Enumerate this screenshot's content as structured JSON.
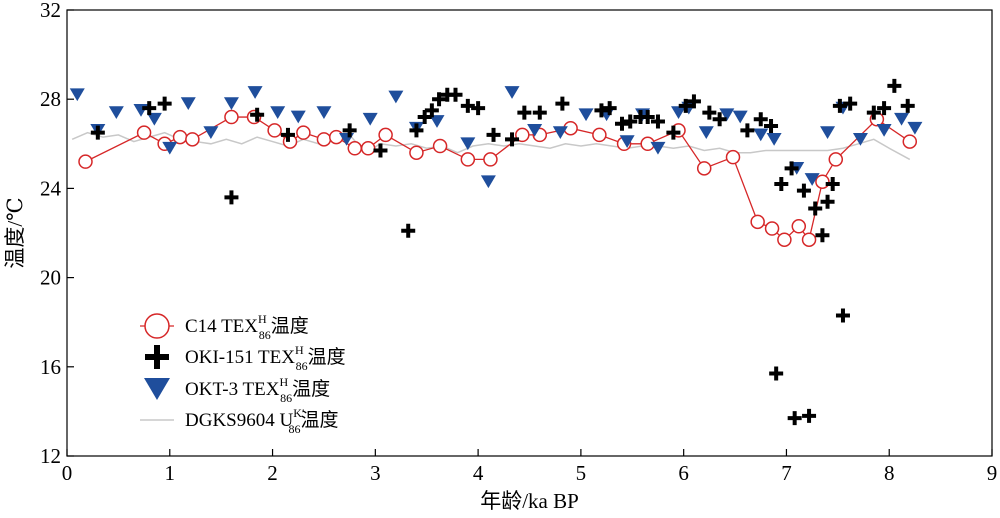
{
  "chart_data": {
    "type": "scatter",
    "xlabel": "年龄/ka BP",
    "ylabel": "温度/℃",
    "xlim": [
      0,
      9
    ],
    "ylim": [
      12,
      32
    ],
    "x_ticks": [
      "0",
      "1",
      "2",
      "3",
      "4",
      "5",
      "6",
      "7",
      "8",
      "9"
    ],
    "y_ticks": [
      "12",
      "16",
      "20",
      "24",
      "28",
      "32"
    ],
    "grid": false,
    "legend_position": "bottom-left",
    "colors": {
      "c14": "#d62728",
      "oki": "#000000",
      "okt": "#1f4e9c",
      "dgks": "#c8c8c8"
    },
    "legend": [
      {
        "key": "c14",
        "pre": "C14 TEX",
        "sup": "H",
        "sub": "86",
        "post": "温度"
      },
      {
        "key": "oki",
        "pre": "OKI-151 TEX",
        "sup": "H",
        "sub": "86",
        "post": "温度"
      },
      {
        "key": "okt",
        "pre": "OKT-3 TEX",
        "sup": "H",
        "sub": "86",
        "post": "温度"
      },
      {
        "key": "dgks",
        "pre": "DGKS9604 U",
        "sup": "K′",
        "sub": "86",
        "post": "温度"
      }
    ],
    "series": [
      {
        "name": "C14 TEX H 86 温度",
        "marker": "circle-line",
        "x": [
          0.18,
          0.75,
          0.95,
          1.1,
          1.22,
          1.6,
          1.82,
          2.02,
          2.17,
          2.3,
          2.5,
          2.62,
          2.8,
          2.93,
          3.1,
          3.4,
          3.63,
          3.9,
          4.12,
          4.43,
          4.6,
          4.9,
          5.18,
          5.42,
          5.65,
          5.95,
          6.2,
          6.48,
          6.72,
          6.86,
          6.98,
          7.12,
          7.22,
          7.35,
          7.48,
          7.88,
          8.2
        ],
        "y": [
          25.2,
          26.5,
          26.0,
          26.3,
          26.2,
          27.2,
          27.2,
          26.6,
          26.1,
          26.5,
          26.2,
          26.3,
          25.8,
          25.8,
          26.4,
          25.6,
          25.9,
          25.3,
          25.3,
          26.4,
          26.4,
          26.7,
          26.4,
          26.0,
          26.0,
          26.6,
          24.9,
          25.4,
          22.5,
          22.2,
          21.7,
          22.3,
          21.7,
          24.3,
          25.3,
          27.1,
          26.1
        ]
      },
      {
        "name": "OKI-151 TEX H 86 温度",
        "marker": "plus",
        "x": [
          0.3,
          0.8,
          0.95,
          1.6,
          1.85,
          2.15,
          2.75,
          3.05,
          3.32,
          3.4,
          3.48,
          3.55,
          3.62,
          3.7,
          3.78,
          3.9,
          4.0,
          4.15,
          4.33,
          4.45,
          4.6,
          4.82,
          5.2,
          5.28,
          5.4,
          5.48,
          5.58,
          5.65,
          5.75,
          5.9,
          6.02,
          6.1,
          6.25,
          6.35,
          6.62,
          6.75,
          6.85,
          6.9,
          6.95,
          7.05,
          7.08,
          7.17,
          7.22,
          7.28,
          7.35,
          7.4,
          7.45,
          7.52,
          7.55,
          7.62,
          7.85,
          7.95,
          8.05,
          8.18
        ],
        "y": [
          26.5,
          27.6,
          27.8,
          23.6,
          27.3,
          26.4,
          26.6,
          25.7,
          22.1,
          26.6,
          27.2,
          27.5,
          28.0,
          28.2,
          28.2,
          27.7,
          27.6,
          26.4,
          26.2,
          27.4,
          27.4,
          27.8,
          27.5,
          27.6,
          26.9,
          27.0,
          27.2,
          27.2,
          27.0,
          26.5,
          27.7,
          27.9,
          27.4,
          27.1,
          26.6,
          27.1,
          26.8,
          15.7,
          24.2,
          24.9,
          13.7,
          23.9,
          13.8,
          23.1,
          21.9,
          23.4,
          24.2,
          27.7,
          18.3,
          27.8,
          27.4,
          27.6,
          28.6,
          27.7
        ]
      },
      {
        "name": "OKT-3 TEX H 86 温度",
        "marker": "triangle-down",
        "x": [
          0.1,
          0.3,
          0.48,
          0.72,
          0.85,
          1.0,
          1.18,
          1.4,
          1.6,
          1.83,
          2.05,
          2.25,
          2.5,
          2.72,
          2.95,
          3.2,
          3.4,
          3.6,
          3.9,
          4.1,
          4.33,
          4.55,
          4.8,
          5.05,
          5.25,
          5.45,
          5.6,
          5.75,
          5.95,
          6.05,
          6.22,
          6.42,
          6.55,
          6.75,
          6.88,
          7.1,
          7.25,
          7.4,
          7.55,
          7.72,
          7.95,
          8.12,
          8.25
        ],
        "y": [
          28.2,
          26.6,
          27.4,
          27.5,
          27.1,
          25.8,
          27.8,
          26.5,
          27.8,
          28.3,
          27.4,
          27.2,
          27.4,
          26.2,
          27.1,
          28.1,
          26.7,
          27.0,
          26.0,
          24.3,
          28.3,
          26.6,
          26.5,
          27.3,
          27.3,
          26.1,
          27.3,
          25.8,
          27.4,
          27.6,
          26.5,
          27.3,
          27.2,
          26.4,
          26.2,
          24.9,
          24.4,
          26.5,
          27.6,
          26.2,
          26.6,
          27.1,
          26.7
        ]
      },
      {
        "name": "DGKS9604 U K′ 86 温度",
        "marker": "line",
        "x": [
          0.05,
          0.2,
          0.35,
          0.5,
          0.65,
          0.8,
          0.95,
          1.1,
          1.25,
          1.4,
          1.55,
          1.7,
          1.85,
          2.0,
          2.15,
          2.3,
          2.45,
          2.6,
          2.75,
          2.9,
          3.05,
          3.2,
          3.35,
          3.5,
          3.65,
          3.8,
          3.95,
          4.1,
          4.25,
          4.4,
          4.55,
          4.7,
          4.85,
          5.0,
          5.15,
          5.3,
          5.45,
          5.6,
          5.75,
          5.9,
          6.05,
          6.2,
          6.35,
          6.5,
          6.65,
          6.8,
          6.95,
          7.1,
          7.25,
          7.4,
          7.55,
          7.7,
          7.85,
          8.0,
          8.2
        ],
        "y": [
          26.2,
          26.5,
          26.3,
          26.4,
          26.1,
          26.3,
          26.5,
          26.2,
          26.1,
          26.0,
          26.2,
          26.0,
          26.3,
          26.1,
          25.9,
          26.2,
          26.0,
          26.3,
          26.4,
          25.6,
          26.0,
          25.9,
          26.0,
          25.8,
          25.9,
          25.6,
          25.9,
          26.0,
          25.9,
          26.0,
          25.9,
          25.8,
          26.0,
          25.9,
          26.0,
          25.9,
          25.8,
          25.9,
          25.9,
          25.8,
          25.9,
          25.7,
          25.8,
          25.6,
          25.6,
          25.7,
          25.7,
          25.7,
          25.7,
          25.7,
          25.8,
          26.0,
          26.2,
          25.8,
          25.3
        ]
      }
    ]
  }
}
